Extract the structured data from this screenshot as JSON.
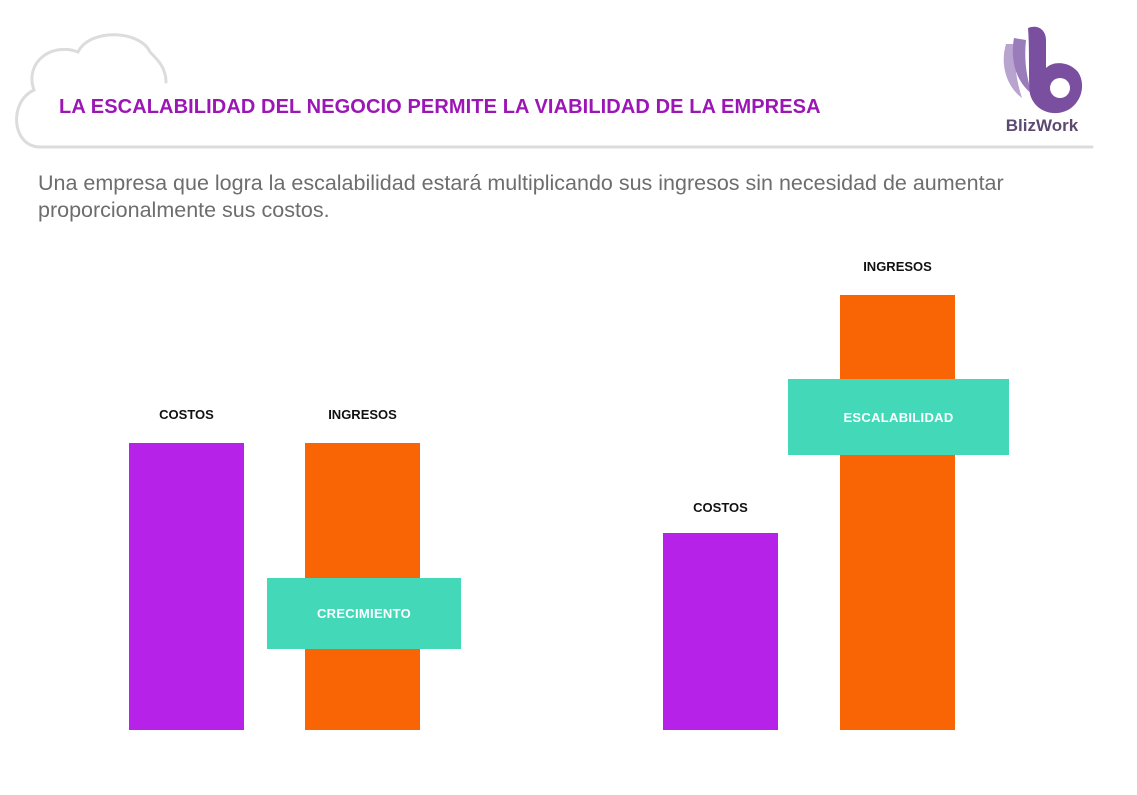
{
  "header": {
    "title": "LA ESCALABILIDAD DEL NEGOCIO PERMITE LA VIABILIDAD DE LA EMPRESA",
    "logo_text": "BlizWork"
  },
  "subtitle": "Una empresa que logra la escalabilidad estará multiplicando sus ingresos sin necesidad de aumentar proporcionalmente sus costos.",
  "colors": {
    "title": "#9c16b6",
    "costos": "#b622e8",
    "ingresos": "#f96504",
    "tag": "#43d9b8",
    "logo": "#7b4fa0"
  },
  "diagrams": [
    {
      "costos_label": "COSTOS",
      "ingresos_label": "INGRESOS",
      "tag_label": "CRECIMIENTO"
    },
    {
      "costos_label": "COSTOS",
      "ingresos_label": "INGRESOS",
      "tag_label": "ESCALABILIDAD"
    }
  ]
}
